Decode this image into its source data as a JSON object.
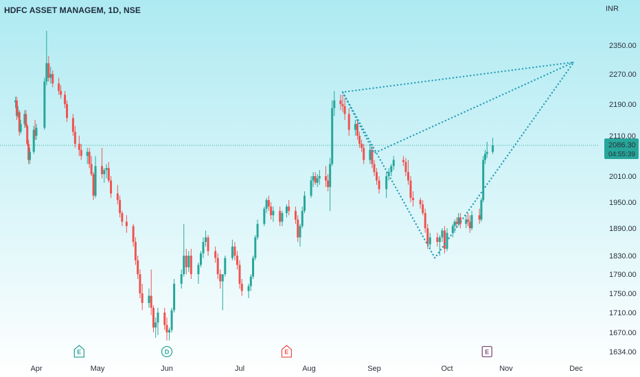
{
  "header": {
    "title": "HDFC ASSET MANAGEM, 1D, NSE"
  },
  "chart_data": {
    "type": "candlestick",
    "symbol": "HDFC ASSET MANAGEM",
    "interval": "1D",
    "exchange": "NSE",
    "currency": "INR",
    "y_ticks": [
      2350,
      2270,
      2190,
      2110,
      2010,
      1950,
      1890,
      1830,
      1790,
      1750,
      1710,
      1670,
      1634
    ],
    "y_labels": [
      "2350.00",
      "2270.00",
      "2190.00",
      "2110.00",
      "2010.00",
      "1950.00",
      "1890.00",
      "1830.00",
      "1790.00",
      "1750.00",
      "1710.00",
      "1670.00",
      "1634.00"
    ],
    "x_labels": [
      "Apr",
      "May",
      "Jun",
      "Jul",
      "Aug",
      "Sep",
      "Oct",
      "Nov",
      "Dec"
    ],
    "last_price": 2086.3,
    "last_price_label": "2086.30",
    "countdown": "04:55:39",
    "colors": {
      "up": "#26a69a",
      "down": "#ef5350",
      "drawing": "#2a9fb8"
    },
    "events": [
      {
        "letter": "E",
        "at": "Apr 22",
        "color": "#26a69a",
        "shape": "pentagon"
      },
      {
        "letter": "D",
        "at": "Jun 1",
        "color": "#26a69a",
        "shape": "circle"
      },
      {
        "letter": "E",
        "at": "Jul 22",
        "color": "#ef5350",
        "shape": "pentagon"
      },
      {
        "letter": "E",
        "at": "Oct 22",
        "color": "#7b4f7a",
        "shape": "square"
      }
    ],
    "drawing": {
      "type": "harmonic-pattern",
      "points": [
        {
          "at": "Aug 17",
          "price": 2222
        },
        {
          "at": "Sep 1",
          "price": 2067
        },
        {
          "at": "Nov 30",
          "price": 2303
        },
        {
          "at": "Sep 26",
          "price": 1825
        },
        {
          "at": "Aug 17",
          "price": 2222
        },
        {
          "at": "Nov 30",
          "price": 2303
        }
      ]
    },
    "candles": [
      {
        "t": "Mar 16",
        "o": 2195,
        "h": 2210,
        "l": 2180,
        "c": 2200
      },
      {
        "t": "Mar 17",
        "o": 2200,
        "h": 2210,
        "l": 2150,
        "c": 2160
      },
      {
        "t": "Mar 18",
        "o": 2160,
        "h": 2185,
        "l": 2155,
        "c": 2170
      },
      {
        "t": "Mar 19",
        "o": 2170,
        "h": 2175,
        "l": 2110,
        "c": 2120
      },
      {
        "t": "Mar 20",
        "o": 2120,
        "h": 2150,
        "l": 2115,
        "c": 2140
      },
      {
        "t": "Mar 23",
        "o": 2140,
        "h": 2175,
        "l": 2130,
        "c": 2165
      },
      {
        "t": "Mar 24",
        "o": 2165,
        "h": 2175,
        "l": 2130,
        "c": 2135
      },
      {
        "t": "Mar 25",
        "o": 2135,
        "h": 2140,
        "l": 2085,
        "c": 2090
      },
      {
        "t": "Mar 26",
        "o": 2090,
        "h": 2100,
        "l": 2040,
        "c": 2050
      },
      {
        "t": "Mar 27",
        "o": 2050,
        "h": 2080,
        "l": 2040,
        "c": 2070
      },
      {
        "t": "Mar 30",
        "o": 2070,
        "h": 2135,
        "l": 2065,
        "c": 2125
      },
      {
        "t": "Mar 31",
        "o": 2125,
        "h": 2150,
        "l": 2100,
        "c": 2110
      },
      {
        "t": "Apr 1",
        "o": 2110,
        "h": 2140,
        "l": 2100,
        "c": 2130
      },
      {
        "t": "Apr 5",
        "o": 2130,
        "h": 2260,
        "l": 2125,
        "c": 2250
      },
      {
        "t": "Apr 6",
        "o": 2250,
        "h": 2390,
        "l": 2240,
        "c": 2300
      },
      {
        "t": "Apr 7",
        "o": 2300,
        "h": 2320,
        "l": 2250,
        "c": 2260
      },
      {
        "t": "Apr 8",
        "o": 2260,
        "h": 2290,
        "l": 2245,
        "c": 2270
      },
      {
        "t": "Apr 9",
        "o": 2270,
        "h": 2280,
        "l": 2235,
        "c": 2245
      },
      {
        "t": "Apr 12",
        "o": 2245,
        "h": 2260,
        "l": 2215,
        "c": 2225
      },
      {
        "t": "Apr 13",
        "o": 2225,
        "h": 2240,
        "l": 2205,
        "c": 2215
      },
      {
        "t": "Apr 15",
        "o": 2215,
        "h": 2225,
        "l": 2180,
        "c": 2190
      },
      {
        "t": "Apr 16",
        "o": 2190,
        "h": 2200,
        "l": 2145,
        "c": 2155
      },
      {
        "t": "Apr 19",
        "o": 2155,
        "h": 2165,
        "l": 2110,
        "c": 2120
      },
      {
        "t": "Apr 20",
        "o": 2120,
        "h": 2135,
        "l": 2080,
        "c": 2090
      },
      {
        "t": "Apr 22",
        "o": 2090,
        "h": 2110,
        "l": 2060,
        "c": 2075
      },
      {
        "t": "Apr 23",
        "o": 2075,
        "h": 2090,
        "l": 2050,
        "c": 2060
      },
      {
        "t": "Apr 26",
        "o": 2060,
        "h": 2080,
        "l": 2040,
        "c": 2070
      },
      {
        "t": "Apr 27",
        "o": 2070,
        "h": 2080,
        "l": 2030,
        "c": 2040
      },
      {
        "t": "Apr 28",
        "o": 2040,
        "h": 2060,
        "l": 2010,
        "c": 2015
      },
      {
        "t": "Apr 29",
        "o": 2015,
        "h": 2020,
        "l": 1955,
        "c": 1965
      },
      {
        "t": "Apr 30",
        "o": 1965,
        "h": 2060,
        "l": 1960,
        "c": 2035
      },
      {
        "t": "May 3",
        "o": 2035,
        "h": 2080,
        "l": 2005,
        "c": 2015
      },
      {
        "t": "May 4",
        "o": 2015,
        "h": 2030,
        "l": 1995,
        "c": 2025
      },
      {
        "t": "May 5",
        "o": 2025,
        "h": 2040,
        "l": 2005,
        "c": 2030
      },
      {
        "t": "May 6",
        "o": 2030,
        "h": 2045,
        "l": 1995,
        "c": 2000
      },
      {
        "t": "May 7",
        "o": 2000,
        "h": 2010,
        "l": 1960,
        "c": 1970
      },
      {
        "t": "May 10",
        "o": 1970,
        "h": 1990,
        "l": 1945,
        "c": 1955
      },
      {
        "t": "May 11",
        "o": 1955,
        "h": 1965,
        "l": 1915,
        "c": 1925
      },
      {
        "t": "May 12",
        "o": 1925,
        "h": 1930,
        "l": 1895,
        "c": 1905
      },
      {
        "t": "May 14",
        "o": 1905,
        "h": 1920,
        "l": 1880,
        "c": 1895
      },
      {
        "t": "May 17",
        "o": 1895,
        "h": 1900,
        "l": 1850,
        "c": 1860
      },
      {
        "t": "May 18",
        "o": 1860,
        "h": 1870,
        "l": 1810,
        "c": 1820
      },
      {
        "t": "May 19",
        "o": 1820,
        "h": 1830,
        "l": 1780,
        "c": 1790
      },
      {
        "t": "May 20",
        "o": 1790,
        "h": 1800,
        "l": 1740,
        "c": 1750
      },
      {
        "t": "May 21",
        "o": 1750,
        "h": 1770,
        "l": 1715,
        "c": 1730
      },
      {
        "t": "May 24",
        "o": 1730,
        "h": 1760,
        "l": 1720,
        "c": 1745
      },
      {
        "t": "May 25",
        "o": 1745,
        "h": 1800,
        "l": 1705,
        "c": 1720
      },
      {
        "t": "May 26",
        "o": 1720,
        "h": 1725,
        "l": 1670,
        "c": 1680
      },
      {
        "t": "May 27",
        "o": 1680,
        "h": 1700,
        "l": 1660,
        "c": 1690
      },
      {
        "t": "May 28",
        "o": 1690,
        "h": 1720,
        "l": 1665,
        "c": 1710
      },
      {
        "t": "May 31",
        "o": 1710,
        "h": 1720,
        "l": 1675,
        "c": 1685
      },
      {
        "t": "Jun 1",
        "o": 1685,
        "h": 1700,
        "l": 1655,
        "c": 1670
      },
      {
        "t": "Jun 2",
        "o": 1670,
        "h": 1680,
        "l": 1655,
        "c": 1675
      },
      {
        "t": "Jun 3",
        "o": 1675,
        "h": 1720,
        "l": 1670,
        "c": 1715
      },
      {
        "t": "Jun 4",
        "o": 1715,
        "h": 1780,
        "l": 1710,
        "c": 1770
      },
      {
        "t": "Jun 7",
        "o": 1770,
        "h": 1800,
        "l": 1760,
        "c": 1790
      },
      {
        "t": "Jun 8",
        "o": 1790,
        "h": 1900,
        "l": 1785,
        "c": 1830
      },
      {
        "t": "Jun 9",
        "o": 1830,
        "h": 1845,
        "l": 1790,
        "c": 1805
      },
      {
        "t": "Jun 10",
        "o": 1805,
        "h": 1840,
        "l": 1795,
        "c": 1830
      },
      {
        "t": "Jun 11",
        "o": 1830,
        "h": 1845,
        "l": 1780,
        "c": 1790
      },
      {
        "t": "Jun 14",
        "o": 1790,
        "h": 1815,
        "l": 1770,
        "c": 1810
      },
      {
        "t": "Jun 15",
        "o": 1810,
        "h": 1840,
        "l": 1805,
        "c": 1835
      },
      {
        "t": "Jun 16",
        "o": 1835,
        "h": 1870,
        "l": 1825,
        "c": 1860
      },
      {
        "t": "Jun 17",
        "o": 1860,
        "h": 1885,
        "l": 1850,
        "c": 1870
      },
      {
        "t": "Jun 18",
        "o": 1870,
        "h": 1875,
        "l": 1830,
        "c": 1840
      },
      {
        "t": "Jun 21",
        "o": 1840,
        "h": 1850,
        "l": 1815,
        "c": 1825
      },
      {
        "t": "Jun 22",
        "o": 1825,
        "h": 1835,
        "l": 1780,
        "c": 1790
      },
      {
        "t": "Jun 23",
        "o": 1790,
        "h": 1800,
        "l": 1760,
        "c": 1775
      },
      {
        "t": "Jun 24",
        "o": 1775,
        "h": 1790,
        "l": 1715,
        "c": 1790
      },
      {
        "t": "Jun 25",
        "o": 1790,
        "h": 1830,
        "l": 1785,
        "c": 1825
      },
      {
        "t": "Jun 28",
        "o": 1825,
        "h": 1865,
        "l": 1820,
        "c": 1850
      },
      {
        "t": "Jun 29",
        "o": 1850,
        "h": 1860,
        "l": 1820,
        "c": 1830
      },
      {
        "t": "Jun 30",
        "o": 1830,
        "h": 1840,
        "l": 1800,
        "c": 1810
      },
      {
        "t": "Jul 1",
        "o": 1810,
        "h": 1820,
        "l": 1760,
        "c": 1770
      },
      {
        "t": "Jul 2",
        "o": 1770,
        "h": 1780,
        "l": 1745,
        "c": 1755
      },
      {
        "t": "Jul 5",
        "o": 1755,
        "h": 1770,
        "l": 1740,
        "c": 1765
      },
      {
        "t": "Jul 6",
        "o": 1765,
        "h": 1790,
        "l": 1755,
        "c": 1785
      },
      {
        "t": "Jul 7",
        "o": 1785,
        "h": 1830,
        "l": 1780,
        "c": 1825
      },
      {
        "t": "Jul 8",
        "o": 1825,
        "h": 1875,
        "l": 1820,
        "c": 1870
      },
      {
        "t": "Jul 9",
        "o": 1870,
        "h": 1910,
        "l": 1865,
        "c": 1900
      },
      {
        "t": "Jul 12",
        "o": 1900,
        "h": 1940,
        "l": 1895,
        "c": 1935
      },
      {
        "t": "Jul 13",
        "o": 1935,
        "h": 1960,
        "l": 1925,
        "c": 1955
      },
      {
        "t": "Jul 14",
        "o": 1955,
        "h": 1965,
        "l": 1930,
        "c": 1940
      },
      {
        "t": "Jul 15",
        "o": 1940,
        "h": 1950,
        "l": 1910,
        "c": 1920
      },
      {
        "t": "Jul 16",
        "o": 1920,
        "h": 1940,
        "l": 1905,
        "c": 1930
      },
      {
        "t": "Jul 19",
        "o": 1930,
        "h": 1940,
        "l": 1895,
        "c": 1905
      },
      {
        "t": "Jul 20",
        "o": 1905,
        "h": 1930,
        "l": 1895,
        "c": 1925
      },
      {
        "t": "Jul 22",
        "o": 1925,
        "h": 1945,
        "l": 1915,
        "c": 1940
      },
      {
        "t": "Jul 23",
        "o": 1940,
        "h": 1955,
        "l": 1920,
        "c": 1930
      },
      {
        "t": "Jul 26",
        "o": 1930,
        "h": 1940,
        "l": 1900,
        "c": 1910
      },
      {
        "t": "Jul 27",
        "o": 1910,
        "h": 1920,
        "l": 1860,
        "c": 1870
      },
      {
        "t": "Jul 28",
        "o": 1870,
        "h": 1900,
        "l": 1850,
        "c": 1895
      },
      {
        "t": "Jul 29",
        "o": 1895,
        "h": 1940,
        "l": 1890,
        "c": 1930
      },
      {
        "t": "Jul 30",
        "o": 1930,
        "h": 1975,
        "l": 1925,
        "c": 1965
      },
      {
        "t": "Aug 2",
        "o": 1965,
        "h": 2010,
        "l": 1960,
        "c": 2000
      },
      {
        "t": "Aug 3",
        "o": 2000,
        "h": 2020,
        "l": 1985,
        "c": 2010
      },
      {
        "t": "Aug 4",
        "o": 2010,
        "h": 2020,
        "l": 1990,
        "c": 1995
      },
      {
        "t": "Aug 5",
        "o": 1995,
        "h": 2015,
        "l": 1985,
        "c": 2005
      },
      {
        "t": "Aug 6",
        "o": 2005,
        "h": 2025,
        "l": 1990,
        "c": 2010
      },
      {
        "t": "Aug 9",
        "o": 2010,
        "h": 2035,
        "l": 1985,
        "c": 2000
      },
      {
        "t": "Aug 10",
        "o": 2000,
        "h": 2015,
        "l": 1975,
        "c": 1985
      },
      {
        "t": "Aug 11",
        "o": 1985,
        "h": 2055,
        "l": 1930,
        "c": 2040
      },
      {
        "t": "Aug 12",
        "o": 2040,
        "h": 2200,
        "l": 2035,
        "c": 2180
      },
      {
        "t": "Aug 13",
        "o": 2180,
        "h": 2225,
        "l": 2160,
        "c": 2200
      },
      {
        "t": "Aug 16",
        "o": 2200,
        "h": 2215,
        "l": 2175,
        "c": 2190
      },
      {
        "t": "Aug 17",
        "o": 2190,
        "h": 2215,
        "l": 2170,
        "c": 2185
      },
      {
        "t": "Aug 18",
        "o": 2185,
        "h": 2205,
        "l": 2150,
        "c": 2165
      },
      {
        "t": "Aug 20",
        "o": 2165,
        "h": 2180,
        "l": 2110,
        "c": 2125
      },
      {
        "t": "Aug 23",
        "o": 2125,
        "h": 2150,
        "l": 2110,
        "c": 2140
      },
      {
        "t": "Aug 24",
        "o": 2140,
        "h": 2150,
        "l": 2100,
        "c": 2110
      },
      {
        "t": "Aug 25",
        "o": 2110,
        "h": 2120,
        "l": 2080,
        "c": 2090
      },
      {
        "t": "Aug 26",
        "o": 2090,
        "h": 2100,
        "l": 2070,
        "c": 2080
      },
      {
        "t": "Aug 27",
        "o": 2080,
        "h": 2090,
        "l": 2040,
        "c": 2050
      },
      {
        "t": "Aug 30",
        "o": 2050,
        "h": 2085,
        "l": 2040,
        "c": 2075
      },
      {
        "t": "Aug 31",
        "o": 2075,
        "h": 2085,
        "l": 2030,
        "c": 2040
      },
      {
        "t": "Sep 1",
        "o": 2040,
        "h": 2050,
        "l": 2010,
        "c": 2020
      },
      {
        "t": "Sep 2",
        "o": 2020,
        "h": 2030,
        "l": 1990,
        "c": 2000
      },
      {
        "t": "Sep 3",
        "o": 2000,
        "h": 2010,
        "l": 1970,
        "c": 1980
      },
      {
        "t": "Sep 6",
        "o": 1980,
        "h": 2020,
        "l": 1960,
        "c": 2010
      },
      {
        "t": "Sep 7",
        "o": 2010,
        "h": 2030,
        "l": 2000,
        "c": 2020
      },
      {
        "t": "Sep 8",
        "o": 2020,
        "h": 2040,
        "l": 2010,
        "c": 2035
      },
      {
        "t": "Sep 9",
        "o": 2035,
        "h": 2060,
        "l": 2025,
        "c": 2050
      },
      {
        "t": "Sep 13",
        "o": 2050,
        "h": 2060,
        "l": 2035,
        "c": 2045
      },
      {
        "t": "Sep 14",
        "o": 2045,
        "h": 2055,
        "l": 2010,
        "c": 2020
      },
      {
        "t": "Sep 15",
        "o": 2020,
        "h": 2050,
        "l": 1990,
        "c": 2000
      },
      {
        "t": "Sep 16",
        "o": 2000,
        "h": 2010,
        "l": 1950,
        "c": 1960
      },
      {
        "t": "Sep 17",
        "o": 1960,
        "h": 1975,
        "l": 1940,
        "c": 1955
      },
      {
        "t": "Sep 20",
        "o": 1955,
        "h": 1960,
        "l": 1935,
        "c": 1945
      },
      {
        "t": "Sep 21",
        "o": 1945,
        "h": 1955,
        "l": 1920,
        "c": 1925
      },
      {
        "t": "Sep 22",
        "o": 1925,
        "h": 1935,
        "l": 1880,
        "c": 1890
      },
      {
        "t": "Sep 23",
        "o": 1890,
        "h": 1900,
        "l": 1845,
        "c": 1855
      },
      {
        "t": "Sep 24",
        "o": 1855,
        "h": 1880,
        "l": 1845,
        "c": 1870
      },
      {
        "t": "Sep 27",
        "o": 1870,
        "h": 1880,
        "l": 1850,
        "c": 1860
      },
      {
        "t": "Sep 28",
        "o": 1860,
        "h": 1875,
        "l": 1830,
        "c": 1870
      },
      {
        "t": "Sep 29",
        "o": 1870,
        "h": 1890,
        "l": 1860,
        "c": 1885
      },
      {
        "t": "Sep 30",
        "o": 1885,
        "h": 1895,
        "l": 1835,
        "c": 1845
      },
      {
        "t": "Oct 1",
        "o": 1845,
        "h": 1890,
        "l": 1840,
        "c": 1880
      },
      {
        "t": "Oct 4",
        "o": 1880,
        "h": 1900,
        "l": 1870,
        "c": 1895
      },
      {
        "t": "Oct 5",
        "o": 1895,
        "h": 1910,
        "l": 1880,
        "c": 1905
      },
      {
        "t": "Oct 6",
        "o": 1905,
        "h": 1915,
        "l": 1890,
        "c": 1900
      },
      {
        "t": "Oct 7",
        "o": 1900,
        "h": 1925,
        "l": 1895,
        "c": 1915
      },
      {
        "t": "Oct 8",
        "o": 1915,
        "h": 1925,
        "l": 1890,
        "c": 1900
      },
      {
        "t": "Oct 11",
        "o": 1900,
        "h": 1920,
        "l": 1890,
        "c": 1910
      },
      {
        "t": "Oct 12",
        "o": 1910,
        "h": 1925,
        "l": 1895,
        "c": 1905
      },
      {
        "t": "Oct 13",
        "o": 1905,
        "h": 1920,
        "l": 1880,
        "c": 1890
      },
      {
        "t": "Oct 14",
        "o": 1890,
        "h": 1930,
        "l": 1885,
        "c": 1920
      },
      {
        "t": "Oct 18",
        "o": 1920,
        "h": 1935,
        "l": 1900,
        "c": 1910
      },
      {
        "t": "Oct 19",
        "o": 1910,
        "h": 1960,
        "l": 1905,
        "c": 1955
      },
      {
        "t": "Oct 20",
        "o": 1955,
        "h": 2060,
        "l": 1950,
        "c": 2050
      },
      {
        "t": "Oct 21",
        "o": 2050,
        "h": 2075,
        "l": 2040,
        "c": 2065
      },
      {
        "t": "Oct 22",
        "o": 2065,
        "h": 2095,
        "l": 2055,
        "c": 2070
      },
      {
        "t": "Oct 25",
        "o": 2070,
        "h": 2105,
        "l": 2065,
        "c": 2086.3
      }
    ]
  }
}
